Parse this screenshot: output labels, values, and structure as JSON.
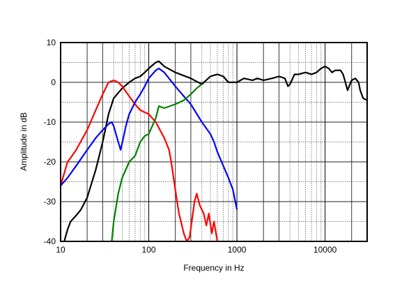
{
  "chart_data": {
    "type": "line",
    "title": "",
    "xlabel": "Frequency in Hz",
    "ylabel": "Amplitude in dB",
    "xscale": "log",
    "xlim": [
      10,
      30000
    ],
    "ylim": [
      -40,
      10
    ],
    "xticks": [
      {
        "value": 10,
        "label": "10"
      },
      {
        "value": 100,
        "label": "100"
      },
      {
        "value": 1000,
        "label": "1000"
      },
      {
        "value": 10000,
        "label": "10000"
      }
    ],
    "yticks": [
      {
        "value": 10,
        "label": "10"
      },
      {
        "value": 0,
        "label": "0"
      },
      {
        "value": -10,
        "label": "-10"
      },
      {
        "value": -20,
        "label": "-20"
      },
      {
        "value": -30,
        "label": "-30"
      },
      {
        "value": -40,
        "label": "-40"
      }
    ],
    "grid": true,
    "series": [
      {
        "name": "black",
        "color": "#000000",
        "points": [
          [
            11,
            -40
          ],
          [
            12,
            -37
          ],
          [
            13,
            -35
          ],
          [
            15,
            -33.5
          ],
          [
            17,
            -32
          ],
          [
            20,
            -29
          ],
          [
            25,
            -22
          ],
          [
            30,
            -15
          ],
          [
            35,
            -8
          ],
          [
            40,
            -4
          ],
          [
            50,
            -1.5
          ],
          [
            60,
            0
          ],
          [
            70,
            1
          ],
          [
            80,
            1.5
          ],
          [
            90,
            2.5
          ],
          [
            100,
            3.5
          ],
          [
            120,
            5
          ],
          [
            130,
            5.3
          ],
          [
            150,
            4
          ],
          [
            200,
            2.5
          ],
          [
            300,
            1
          ],
          [
            400,
            -0.5
          ],
          [
            500,
            1.5
          ],
          [
            600,
            2
          ],
          [
            700,
            1.5
          ],
          [
            800,
            0
          ],
          [
            1000,
            0
          ],
          [
            1200,
            1
          ],
          [
            1500,
            0.5
          ],
          [
            1700,
            1
          ],
          [
            2000,
            0.5
          ],
          [
            2500,
            1
          ],
          [
            3000,
            1.5
          ],
          [
            3500,
            1
          ],
          [
            3800,
            -1
          ],
          [
            4000,
            -0.5
          ],
          [
            4500,
            2
          ],
          [
            5000,
            2
          ],
          [
            6000,
            2.5
          ],
          [
            7000,
            2
          ],
          [
            8000,
            2.5
          ],
          [
            9000,
            3.5
          ],
          [
            10000,
            4
          ],
          [
            11000,
            3.5
          ],
          [
            12000,
            2.5
          ],
          [
            13000,
            3
          ],
          [
            15000,
            3
          ],
          [
            16000,
            2
          ],
          [
            17000,
            0
          ],
          [
            18000,
            -2
          ],
          [
            20000,
            0.5
          ],
          [
            22000,
            1
          ],
          [
            24000,
            0
          ],
          [
            25000,
            -2
          ],
          [
            27000,
            -4
          ],
          [
            30000,
            -4.5
          ]
        ]
      },
      {
        "name": "red",
        "color": "#ff0000",
        "points": [
          [
            10,
            -26
          ],
          [
            12,
            -20
          ],
          [
            13,
            -19
          ],
          [
            15,
            -17
          ],
          [
            20,
            -12
          ],
          [
            25,
            -7
          ],
          [
            30,
            -3
          ],
          [
            35,
            0
          ],
          [
            40,
            0.5
          ],
          [
            45,
            0
          ],
          [
            50,
            -1
          ],
          [
            60,
            -3.5
          ],
          [
            70,
            -5.5
          ],
          [
            80,
            -7
          ],
          [
            100,
            -8
          ],
          [
            120,
            -10
          ],
          [
            150,
            -14
          ],
          [
            170,
            -17
          ],
          [
            180,
            -20
          ],
          [
            200,
            -27
          ],
          [
            220,
            -33
          ],
          [
            250,
            -38
          ],
          [
            270,
            -40
          ],
          [
            290,
            -39
          ],
          [
            330,
            -30
          ],
          [
            350,
            -28
          ],
          [
            380,
            -31
          ],
          [
            420,
            -33
          ],
          [
            450,
            -36
          ],
          [
            480,
            -33
          ],
          [
            520,
            -38
          ],
          [
            550,
            -35
          ],
          [
            600,
            -40
          ]
        ]
      },
      {
        "name": "blue",
        "color": "#0000ff",
        "points": [
          [
            10,
            -26
          ],
          [
            12,
            -24
          ],
          [
            15,
            -21
          ],
          [
            20,
            -17
          ],
          [
            25,
            -14
          ],
          [
            30,
            -12
          ],
          [
            35,
            -10.5
          ],
          [
            38,
            -10
          ],
          [
            40,
            -11
          ],
          [
            45,
            -15
          ],
          [
            48,
            -17
          ],
          [
            55,
            -11
          ],
          [
            60,
            -8
          ],
          [
            70,
            -5
          ],
          [
            80,
            -3
          ],
          [
            90,
            -1
          ],
          [
            100,
            1
          ],
          [
            120,
            3
          ],
          [
            130,
            3.5
          ],
          [
            150,
            2.5
          ],
          [
            200,
            -1
          ],
          [
            250,
            -3.5
          ],
          [
            300,
            -5.5
          ],
          [
            400,
            -10
          ],
          [
            500,
            -13
          ],
          [
            550,
            -15
          ],
          [
            600,
            -17.5
          ],
          [
            700,
            -21
          ],
          [
            800,
            -24
          ],
          [
            900,
            -27
          ],
          [
            1000,
            -32
          ]
        ]
      },
      {
        "name": "green",
        "color": "#008000",
        "points": [
          [
            38,
            -40
          ],
          [
            40,
            -35
          ],
          [
            45,
            -28
          ],
          [
            50,
            -24
          ],
          [
            60,
            -20
          ],
          [
            70,
            -18.5
          ],
          [
            80,
            -15
          ],
          [
            90,
            -13.5
          ],
          [
            100,
            -13
          ],
          [
            120,
            -9
          ],
          [
            130,
            -6
          ],
          [
            150,
            -6.5
          ],
          [
            200,
            -5.5
          ],
          [
            250,
            -4.5
          ],
          [
            300,
            -3
          ],
          [
            350,
            -1.5
          ],
          [
            400,
            -0.5
          ]
        ]
      }
    ]
  }
}
